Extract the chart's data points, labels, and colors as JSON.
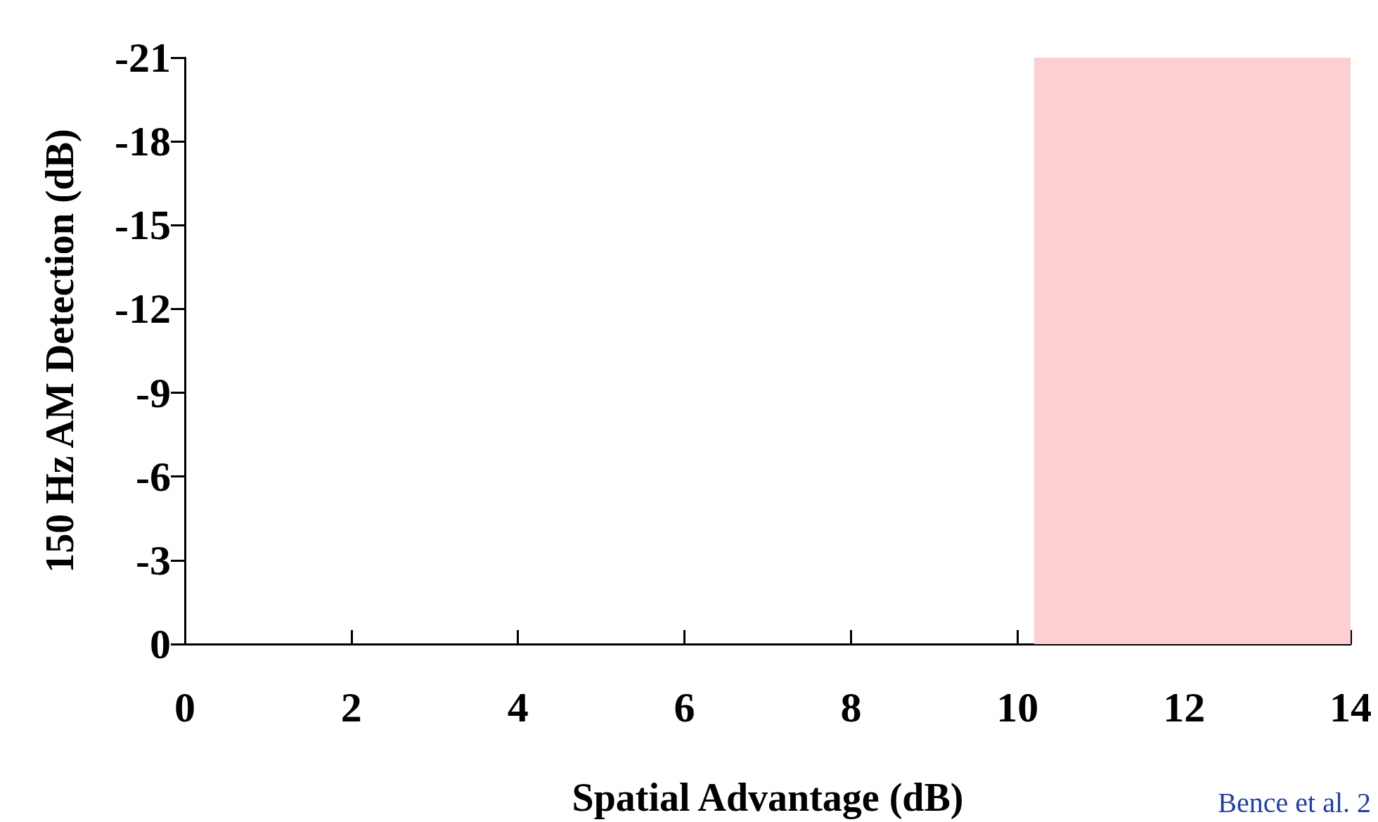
{
  "chart_data": {
    "type": "scatter",
    "xlabel": "Spatial Advantage (dB)",
    "ylabel": "150 Hz AM Detection (dB)",
    "xlim": [
      0,
      14
    ],
    "xticks": [
      0,
      2,
      4,
      6,
      8,
      10,
      12,
      14
    ],
    "ylim": [
      0,
      -21
    ],
    "yticks": [
      0,
      -3,
      -6,
      -9,
      -12,
      -15,
      -18,
      -21
    ],
    "bands": [
      {
        "axis": "x",
        "from": 10.2,
        "to": 14,
        "color": "#fdcfd0"
      }
    ],
    "annotations": [
      "Bence et al. 2"
    ],
    "grid": false
  }
}
